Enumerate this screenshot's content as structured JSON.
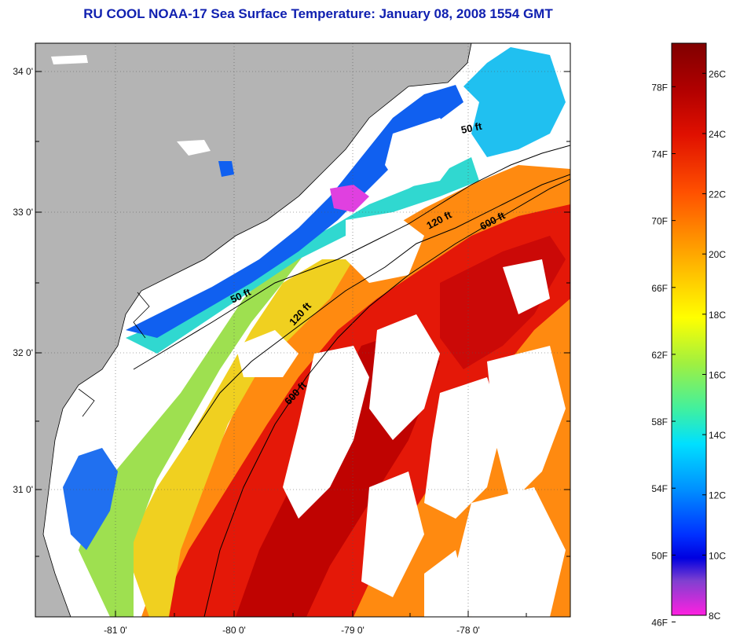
{
  "title": "RU COOL  NOAA-17  Sea Surface Temperature:  January 08, 2008 1554 GMT",
  "map": {
    "lat_labels": [
      "34 0'",
      "33 0'",
      "32 0'",
      "31 0'"
    ],
    "lon_labels": [
      "-81 0'",
      "-80 0'",
      "-79 0'",
      "-78 0'"
    ],
    "contour_labels": [
      "50 ft",
      "120 ft",
      "600 ft",
      "50 ft",
      "120 ft",
      "600 ft"
    ],
    "colors": {
      "land": "#b4b4b4",
      "cloud": "#ffffff",
      "coast": "#000000"
    }
  },
  "colorbar": {
    "fahrenheit_labels": [
      "78F",
      "74F",
      "70F",
      "66F",
      "62F",
      "58F",
      "54F",
      "50F",
      "46F"
    ],
    "celsius_labels": [
      "26C",
      "24C",
      "22C",
      "20C",
      "18C",
      "16C",
      "14C",
      "12C",
      "10C",
      "8C"
    ],
    "range_c": [
      8,
      27
    ],
    "gradient": [
      "#800000",
      "#c00000",
      "#ff2000",
      "#ff7000",
      "#ffb000",
      "#ffff00",
      "#a0f040",
      "#40f0a0",
      "#00e0ff",
      "#0090ff",
      "#0030ff",
      "#0000e0",
      "#8040d0",
      "#ff20e0"
    ]
  }
}
